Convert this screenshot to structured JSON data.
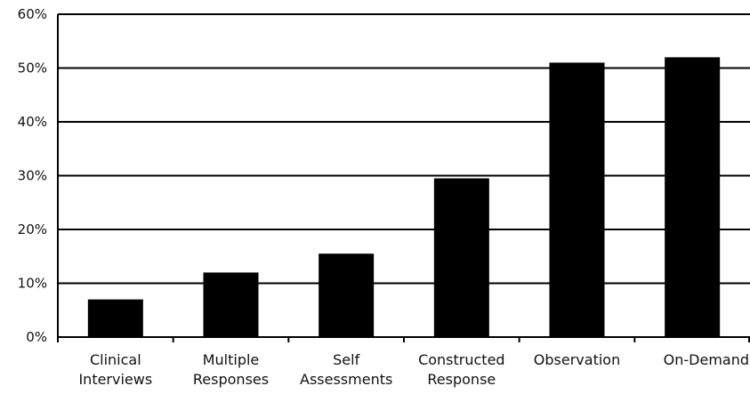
{
  "chart_data": {
    "type": "bar",
    "title": "",
    "xlabel": "",
    "ylabel": "",
    "categories": [
      [
        "Clinical",
        "Interviews"
      ],
      [
        "Multiple",
        "Responses"
      ],
      [
        "Self",
        "Assessments"
      ],
      [
        "Constructed",
        "Response"
      ],
      [
        "Observation"
      ],
      [
        "On-Demand"
      ]
    ],
    "values": [
      7,
      12,
      15.5,
      29.5,
      51,
      52
    ],
    "ylim": [
      0,
      60
    ],
    "yticks": [
      0,
      10,
      20,
      30,
      40,
      50,
      60
    ],
    "ytick_labels": [
      "0%",
      "10%",
      "20%",
      "30%",
      "40%",
      "50%",
      "60%"
    ],
    "grid": "horizontal",
    "bar_color": "#000000",
    "legend": "none"
  }
}
